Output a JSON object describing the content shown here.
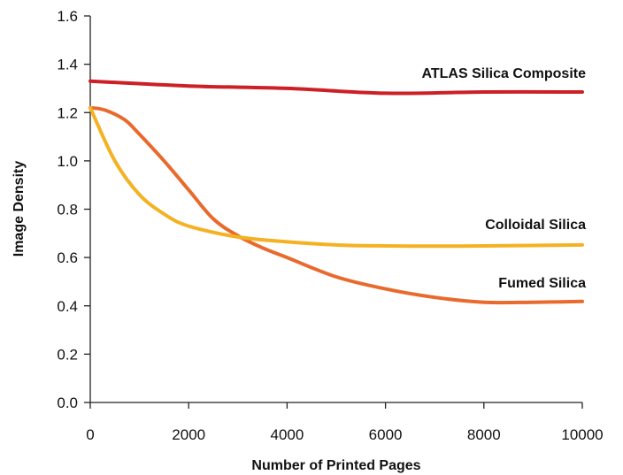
{
  "chart_data": {
    "type": "line",
    "title": "",
    "xlabel": "Number of Printed Pages",
    "ylabel": "Image Density",
    "xlim": [
      0,
      10000
    ],
    "ylim": [
      0,
      1.6
    ],
    "xticks": [
      "0",
      "2000",
      "4000",
      "6000",
      "8000",
      "10000"
    ],
    "yticks": [
      "0.0",
      "0.2",
      "0.4",
      "0.6",
      "0.8",
      "1.0",
      "1.2",
      "1.4",
      "1.6"
    ],
    "grid": false,
    "legend": "inline labels at line ends",
    "series": [
      {
        "name": "ATLAS Silica Composite",
        "color": "#cc1f26",
        "x": [
          0,
          2000,
          4000,
          6000,
          8000,
          10000
        ],
        "y": [
          1.33,
          1.31,
          1.3,
          1.28,
          1.285,
          1.285
        ]
      },
      {
        "name": "Colloidal Silica",
        "color": "#f4b223",
        "x": [
          0,
          500,
          1000,
          1500,
          2000,
          3000,
          4000,
          5000,
          6000,
          7000,
          8000,
          9000,
          10000
        ],
        "y": [
          1.22,
          1.0,
          0.86,
          0.78,
          0.73,
          0.685,
          0.665,
          0.652,
          0.648,
          0.647,
          0.648,
          0.65,
          0.652
        ]
      },
      {
        "name": "Fumed Silica",
        "color": "#e86a2d",
        "x": [
          0,
          300,
          700,
          1000,
          1500,
          2000,
          2500,
          3000,
          3500,
          4000,
          5000,
          6000,
          7000,
          8000,
          9000,
          10000
        ],
        "y": [
          1.22,
          1.21,
          1.17,
          1.11,
          1.0,
          0.88,
          0.76,
          0.69,
          0.64,
          0.6,
          0.52,
          0.47,
          0.435,
          0.415,
          0.415,
          0.418
        ]
      }
    ]
  }
}
